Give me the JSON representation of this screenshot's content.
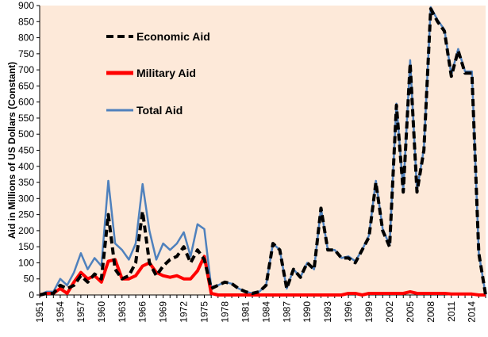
{
  "chart_data": {
    "type": "line",
    "title": "",
    "xlabel": "",
    "ylabel": "Aid in Millions of US Dollars (Constant)",
    "xlim": [
      1951,
      2016
    ],
    "ylim": [
      0,
      900
    ],
    "y_ticks": [
      0,
      50,
      100,
      150,
      200,
      250,
      300,
      350,
      400,
      450,
      500,
      550,
      600,
      650,
      700,
      750,
      800,
      850,
      900
    ],
    "x_ticks": [
      1951,
      1954,
      1957,
      1960,
      1963,
      1966,
      1969,
      1972,
      1975,
      1978,
      1981,
      1984,
      1987,
      1990,
      1993,
      1996,
      1999,
      2002,
      2005,
      2008,
      2011,
      2014
    ],
    "grid": false,
    "legend_position": "top-left",
    "background_color": "#FDE9D9",
    "x": [
      1951,
      1952,
      1953,
      1954,
      1955,
      1956,
      1957,
      1958,
      1959,
      1960,
      1961,
      1962,
      1963,
      1964,
      1965,
      1966,
      1967,
      1968,
      1969,
      1970,
      1971,
      1972,
      1973,
      1974,
      1975,
      1976,
      1977,
      1978,
      1979,
      1980,
      1981,
      1982,
      1983,
      1984,
      1985,
      1986,
      1987,
      1988,
      1989,
      1990,
      1991,
      1992,
      1993,
      1994,
      1995,
      1996,
      1997,
      1998,
      1999,
      2000,
      2001,
      2002,
      2003,
      2004,
      2005,
      2006,
      2007,
      2008,
      2009,
      2010,
      2011,
      2012,
      2013,
      2014,
      2015,
      2016
    ],
    "series": [
      {
        "name": "Economic Aid",
        "color": "#000000",
        "style": "dashed",
        "values": [
          0,
          5,
          5,
          30,
          20,
          30,
          60,
          40,
          65,
          50,
          250,
          80,
          50,
          60,
          100,
          260,
          100,
          60,
          90,
          110,
          120,
          150,
          100,
          140,
          110,
          20,
          30,
          40,
          35,
          20,
          10,
          5,
          10,
          30,
          160,
          140,
          20,
          80,
          55,
          100,
          80,
          270,
          140,
          140,
          115,
          115,
          100,
          140,
          180,
          350,
          200,
          150,
          590,
          320,
          720,
          320,
          450,
          890,
          850,
          820,
          680,
          760,
          690,
          690,
          130,
          0
        ],
        "labels": []
      },
      {
        "name": "Military Aid",
        "color": "#FF0000",
        "style": "solid",
        "values": [
          0,
          5,
          5,
          20,
          5,
          40,
          70,
          50,
          60,
          40,
          105,
          110,
          50,
          50,
          60,
          90,
          100,
          70,
          60,
          55,
          60,
          50,
          50,
          75,
          120,
          5,
          0,
          0,
          0,
          0,
          0,
          0,
          0,
          0,
          0,
          0,
          0,
          0,
          0,
          0,
          0,
          0,
          0,
          0,
          0,
          5,
          5,
          0,
          5,
          5,
          5,
          5,
          5,
          5,
          10,
          5,
          5,
          5,
          5,
          5,
          3,
          3,
          3,
          3,
          0,
          0
        ],
        "labels": []
      },
      {
        "name": "Total Aid",
        "color": "#4F81BD",
        "style": "solid",
        "values": [
          0,
          10,
          10,
          50,
          30,
          70,
          130,
          80,
          115,
          90,
          355,
          160,
          140,
          110,
          160,
          345,
          200,
          110,
          160,
          140,
          160,
          195,
          120,
          220,
          205,
          25,
          30,
          40,
          35,
          20,
          10,
          5,
          10,
          30,
          160,
          140,
          20,
          80,
          55,
          100,
          80,
          270,
          140,
          140,
          115,
          120,
          105,
          140,
          185,
          355,
          205,
          155,
          595,
          325,
          730,
          325,
          455,
          895,
          855,
          825,
          685,
          765,
          695,
          695,
          130,
          0
        ],
        "labels": []
      }
    ]
  }
}
